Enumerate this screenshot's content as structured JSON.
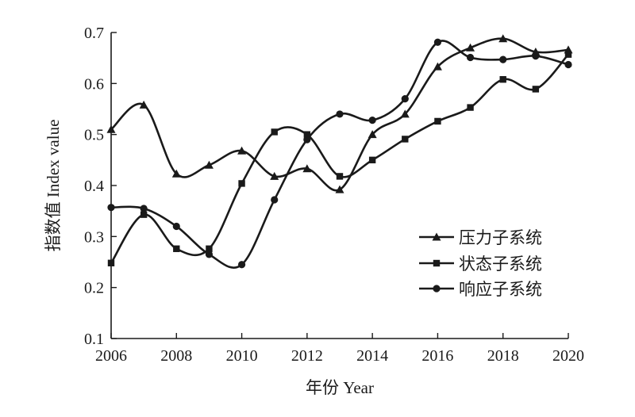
{
  "chart_data": {
    "type": "line",
    "xlabel": "年份 Year",
    "ylabel": "指数值 Index value",
    "x": [
      2006,
      2007,
      2008,
      2009,
      2010,
      2011,
      2012,
      2013,
      2014,
      2015,
      2016,
      2017,
      2018,
      2019,
      2020
    ],
    "xlim": [
      2006,
      2020
    ],
    "ylim": [
      0.1,
      0.7
    ],
    "xticks": [
      "2006",
      "2008",
      "2010",
      "2012",
      "2014",
      "2016",
      "2018",
      "2020"
    ],
    "yticks": [
      "0.1",
      "0.2",
      "0.3",
      "0.4",
      "0.5",
      "0.6",
      "0.7"
    ],
    "grid": false,
    "legend_position": "right",
    "series": [
      {
        "name": "压力子系统",
        "marker": "triangle",
        "values": [
          0.51,
          0.558,
          0.423,
          0.44,
          0.468,
          0.418,
          0.433,
          0.392,
          0.5,
          0.54,
          0.633,
          0.67,
          0.688,
          0.662,
          0.666
        ]
      },
      {
        "name": "状态子系统",
        "marker": "square",
        "values": [
          0.248,
          0.343,
          0.276,
          0.276,
          0.404,
          0.505,
          0.5,
          0.418,
          0.45,
          0.491,
          0.526,
          0.553,
          0.608,
          0.589,
          0.657
        ]
      },
      {
        "name": "响应子系统",
        "marker": "circle",
        "values": [
          0.357,
          0.355,
          0.32,
          0.265,
          0.245,
          0.372,
          0.49,
          0.54,
          0.528,
          0.57,
          0.681,
          0.651,
          0.647,
          0.654,
          0.637
        ]
      }
    ]
  }
}
